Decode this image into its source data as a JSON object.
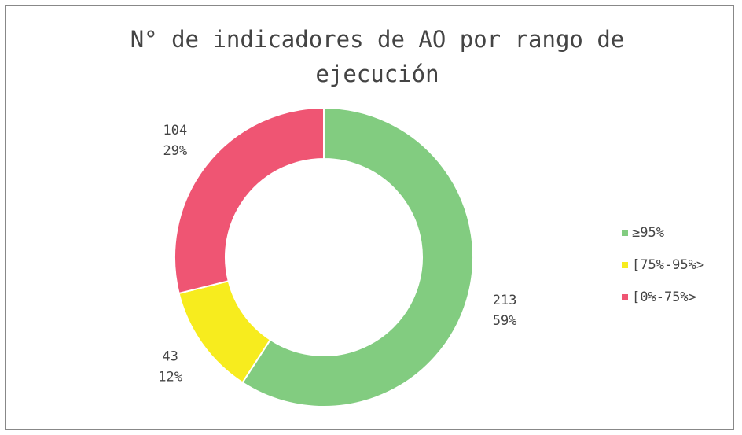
{
  "chart_data": {
    "type": "donut",
    "title": "N° de indicadores de AO por rango de ejecución",
    "categories": [
      "≥95%",
      "[75%-95%>",
      "[0%-75%>"
    ],
    "values": [
      213,
      43,
      104
    ],
    "percent_labels": [
      "59%",
      "12%",
      "29%"
    ],
    "colors": [
      "#82cc80",
      "#f7ec1e",
      "#ef5573"
    ],
    "legend": "right"
  }
}
